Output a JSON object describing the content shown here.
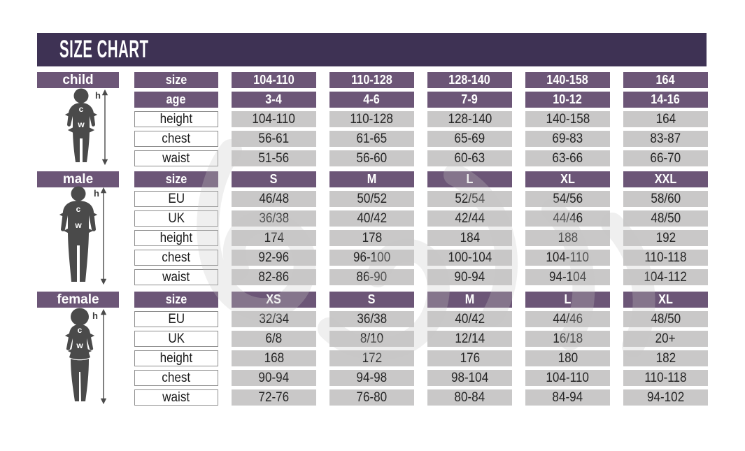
{
  "title": "SIZE CHART",
  "colors": {
    "title_bar": "#3e3254",
    "header_purple": "#6c5677",
    "value_cell_gray": "#c9c8c8",
    "figure_gray": "#4a4a4a",
    "text_dark": "#262626",
    "label_border": "#8d8d8d"
  },
  "figures": {
    "height_label": "h",
    "chest_label": "c",
    "waist_label": "w"
  },
  "sections": [
    {
      "name": "child",
      "label": "child",
      "rows": [
        {
          "label": "size",
          "style": "header",
          "values": [
            "104-110",
            "110-128",
            "128-140",
            "140-158",
            "164"
          ]
        },
        {
          "label": "age",
          "style": "header",
          "values": [
            "3-4",
            "4-6",
            "7-9",
            "10-12",
            "14-16"
          ]
        },
        {
          "label": "height",
          "style": "data",
          "values": [
            "104-110",
            "110-128",
            "128-140",
            "140-158",
            "164"
          ]
        },
        {
          "label": "chest",
          "style": "data",
          "values": [
            "56-61",
            "61-65",
            "65-69",
            "69-83",
            "83-87"
          ]
        },
        {
          "label": "waist",
          "style": "data",
          "values": [
            "51-56",
            "56-60",
            "60-63",
            "63-66",
            "66-70"
          ]
        }
      ]
    },
    {
      "name": "male",
      "label": "male",
      "rows": [
        {
          "label": "size",
          "style": "header",
          "values": [
            "S",
            "M",
            "L",
            "XL",
            "XXL"
          ]
        },
        {
          "label": "EU",
          "style": "data",
          "values": [
            "46/48",
            "50/52",
            "52/54",
            "54/56",
            "58/60"
          ]
        },
        {
          "label": "UK",
          "style": "data",
          "values": [
            "36/38",
            "40/42",
            "42/44",
            "44/46",
            "48/50"
          ]
        },
        {
          "label": "height",
          "style": "data",
          "values": [
            "174",
            "178",
            "184",
            "188",
            "192"
          ]
        },
        {
          "label": "chest",
          "style": "data",
          "values": [
            "92-96",
            "96-100",
            "100-104",
            "104-110",
            "110-118"
          ]
        },
        {
          "label": "waist",
          "style": "data",
          "values": [
            "82-86",
            "86-90",
            "90-94",
            "94-104",
            "104-112"
          ]
        }
      ]
    },
    {
      "name": "female",
      "label": "female",
      "rows": [
        {
          "label": "size",
          "style": "header",
          "values": [
            "XS",
            "S",
            "M",
            "L",
            "XL"
          ]
        },
        {
          "label": "EU",
          "style": "data",
          "values": [
            "32/34",
            "36/38",
            "40/42",
            "44/46",
            "48/50"
          ]
        },
        {
          "label": "UK",
          "style": "data",
          "values": [
            "6/8",
            "8/10",
            "12/14",
            "16/18",
            "20+"
          ]
        },
        {
          "label": "height",
          "style": "data",
          "values": [
            "168",
            "172",
            "176",
            "180",
            "182"
          ]
        },
        {
          "label": "chest",
          "style": "data",
          "values": [
            "90-94",
            "94-98",
            "98-104",
            "104-110",
            "110-118"
          ]
        },
        {
          "label": "waist",
          "style": "data",
          "values": [
            "72-76",
            "76-80",
            "80-84",
            "84-94",
            "94-102"
          ]
        }
      ]
    }
  ],
  "chart_data": [
    {
      "type": "table",
      "title": "child",
      "columns": [
        "size",
        "104-110",
        "110-128",
        "128-140",
        "140-158",
        "164"
      ],
      "rows": [
        [
          "age",
          "3-4",
          "4-6",
          "7-9",
          "10-12",
          "14-16"
        ],
        [
          "height",
          "104-110",
          "110-128",
          "128-140",
          "140-158",
          "164"
        ],
        [
          "chest",
          "56-61",
          "61-65",
          "65-69",
          "69-83",
          "83-87"
        ],
        [
          "waist",
          "51-56",
          "56-60",
          "60-63",
          "63-66",
          "66-70"
        ]
      ]
    },
    {
      "type": "table",
      "title": "male",
      "columns": [
        "size",
        "S",
        "M",
        "L",
        "XL",
        "XXL"
      ],
      "rows": [
        [
          "EU",
          "46/48",
          "50/52",
          "52/54",
          "54/56",
          "58/60"
        ],
        [
          "UK",
          "36/38",
          "40/42",
          "42/44",
          "44/46",
          "48/50"
        ],
        [
          "height",
          "174",
          "178",
          "184",
          "188",
          "192"
        ],
        [
          "chest",
          "92-96",
          "96-100",
          "100-104",
          "104-110",
          "110-118"
        ],
        [
          "waist",
          "82-86",
          "86-90",
          "90-94",
          "94-104",
          "104-112"
        ]
      ]
    },
    {
      "type": "table",
      "title": "female",
      "columns": [
        "size",
        "XS",
        "S",
        "M",
        "L",
        "XL"
      ],
      "rows": [
        [
          "EU",
          "32/34",
          "36/38",
          "40/42",
          "44/46",
          "48/50"
        ],
        [
          "UK",
          "6/8",
          "8/10",
          "12/14",
          "16/18",
          "20+"
        ],
        [
          "height",
          "168",
          "172",
          "176",
          "180",
          "182"
        ],
        [
          "chest",
          "90-94",
          "94-98",
          "98-104",
          "104-110",
          "110-118"
        ],
        [
          "waist",
          "72-76",
          "76-80",
          "80-84",
          "84-94",
          "94-102"
        ]
      ]
    }
  ]
}
